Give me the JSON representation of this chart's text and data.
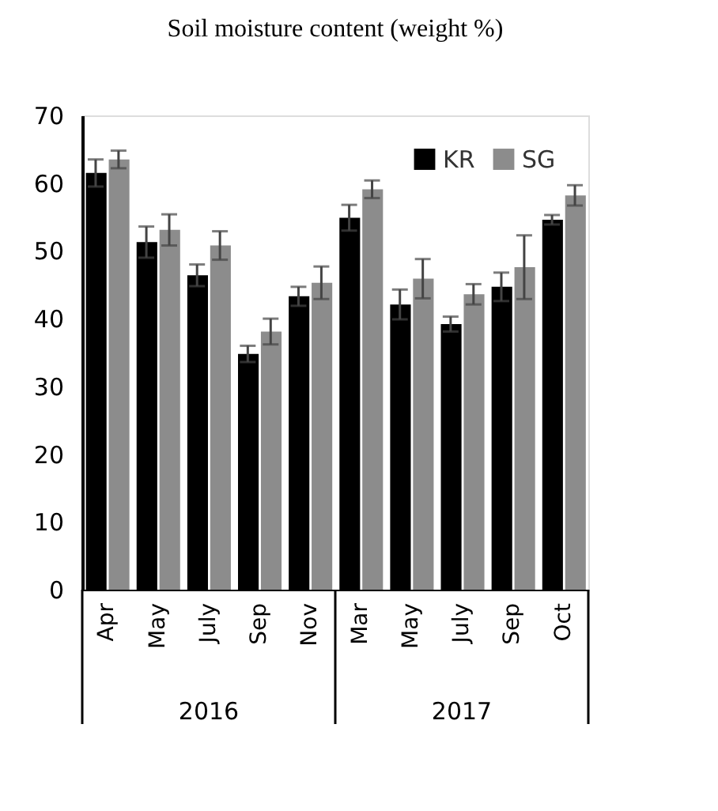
{
  "chart_data": {
    "type": "bar",
    "title": "Soil moisture content (weight %)",
    "categories": [
      "Apr",
      "May",
      "July",
      "Sep",
      "Nov",
      "Mar",
      "May",
      "July",
      "Sep",
      "Oct"
    ],
    "series": [
      {
        "name": "KR",
        "color": "#000000",
        "values": [
          61.5,
          51.3,
          46.4,
          34.8,
          43.3,
          54.9,
          42.1,
          39.2,
          44.7,
          54.6
        ],
        "errors": [
          2.0,
          2.3,
          1.6,
          1.2,
          1.4,
          1.9,
          2.2,
          1.1,
          2.1,
          0.7
        ]
      },
      {
        "name": "SG",
        "color": "#8c8c8c",
        "values": [
          63.5,
          53.1,
          50.8,
          38.1,
          45.3,
          59.1,
          45.9,
          43.6,
          47.6,
          58.2
        ],
        "errors": [
          1.3,
          2.3,
          2.1,
          1.9,
          2.4,
          1.3,
          2.9,
          1.5,
          4.7,
          1.5
        ]
      }
    ],
    "ylim": [
      0,
      70
    ],
    "yticks": [
      0,
      10,
      20,
      30,
      40,
      50,
      60,
      70
    ],
    "grid": false,
    "legend": "top right",
    "annotations": [
      "2016",
      "2017"
    ]
  }
}
